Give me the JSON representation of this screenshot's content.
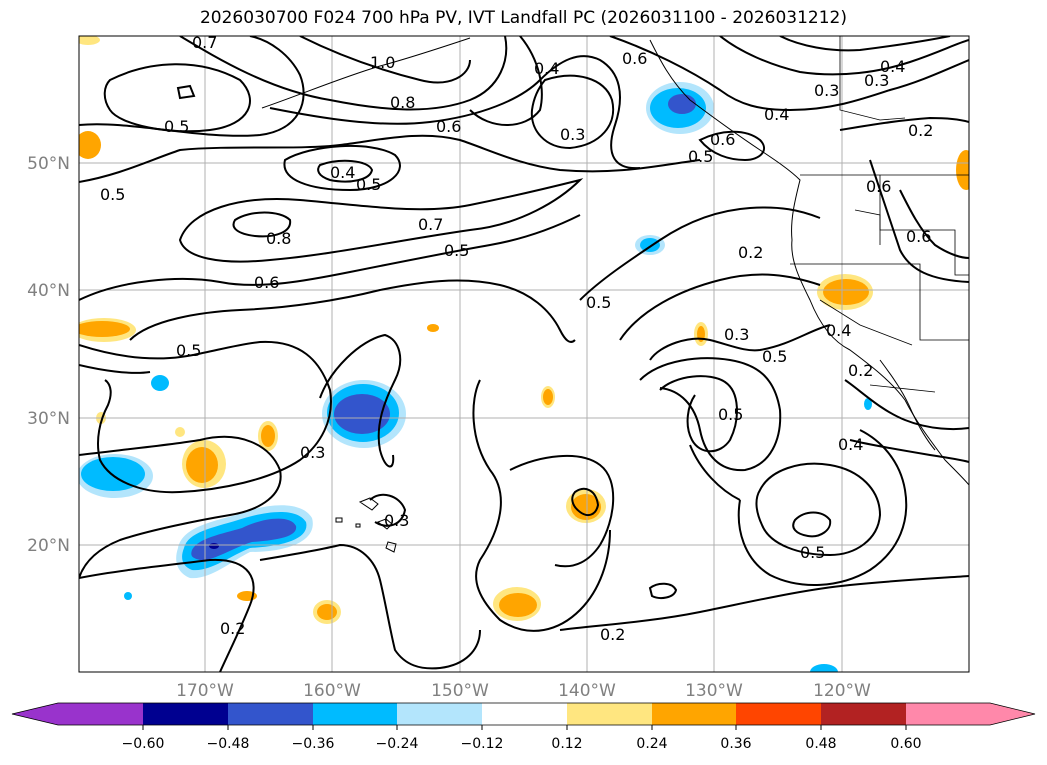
{
  "title": "2026030700 F024 700 hPa PV, IVT Landfall PC (2026031100 - 2026031212)",
  "map": {
    "lat_labels": [
      "50°N",
      "40°N",
      "30°N",
      "20°N"
    ],
    "lon_labels": [
      "170°W",
      "160°W",
      "150°W",
      "140°W",
      "130°W",
      "120°W"
    ],
    "contour_labels": [
      {
        "text": "0.7"
      },
      {
        "text": "1.0"
      },
      {
        "text": "0.8"
      },
      {
        "text": "0.5"
      },
      {
        "text": "0.6"
      },
      {
        "text": "0.4"
      },
      {
        "text": "0.3"
      },
      {
        "text": "0.6"
      },
      {
        "text": "0.6"
      },
      {
        "text": "0.5"
      },
      {
        "text": "0.4"
      },
      {
        "text": "0.3"
      },
      {
        "text": "0.3"
      },
      {
        "text": "0.4"
      },
      {
        "text": "0.2"
      },
      {
        "text": "0.4"
      },
      {
        "text": "0.5"
      },
      {
        "text": "0.5"
      },
      {
        "text": "0.8"
      },
      {
        "text": "0.7"
      },
      {
        "text": "0.5"
      },
      {
        "text": "0.6"
      },
      {
        "text": "0.5"
      },
      {
        "text": "0.2"
      },
      {
        "text": "0.5"
      },
      {
        "text": "0.3"
      },
      {
        "text": "0.5"
      },
      {
        "text": "0.4"
      },
      {
        "text": "0.2"
      },
      {
        "text": "0.5"
      },
      {
        "text": "0.4"
      },
      {
        "text": "0.3"
      },
      {
        "text": "0.5"
      },
      {
        "text": "0.3"
      },
      {
        "text": "0.2"
      },
      {
        "text": "0.2"
      },
      {
        "text": "0.6"
      },
      {
        "text": "0.6"
      }
    ]
  },
  "colorbar": {
    "ticks": [
      "−0.60",
      "−0.48",
      "−0.36",
      "−0.24",
      "−0.12",
      "0.12",
      "0.24",
      "0.36",
      "0.48",
      "0.60"
    ],
    "colors": [
      "#9933cc",
      "#000090",
      "#3355cc",
      "#00bbff",
      "#b3e5fc",
      "#ffffff",
      "#ffe680",
      "#ffa500",
      "#ff4500",
      "#b22222",
      "#ff88aa"
    ]
  }
}
